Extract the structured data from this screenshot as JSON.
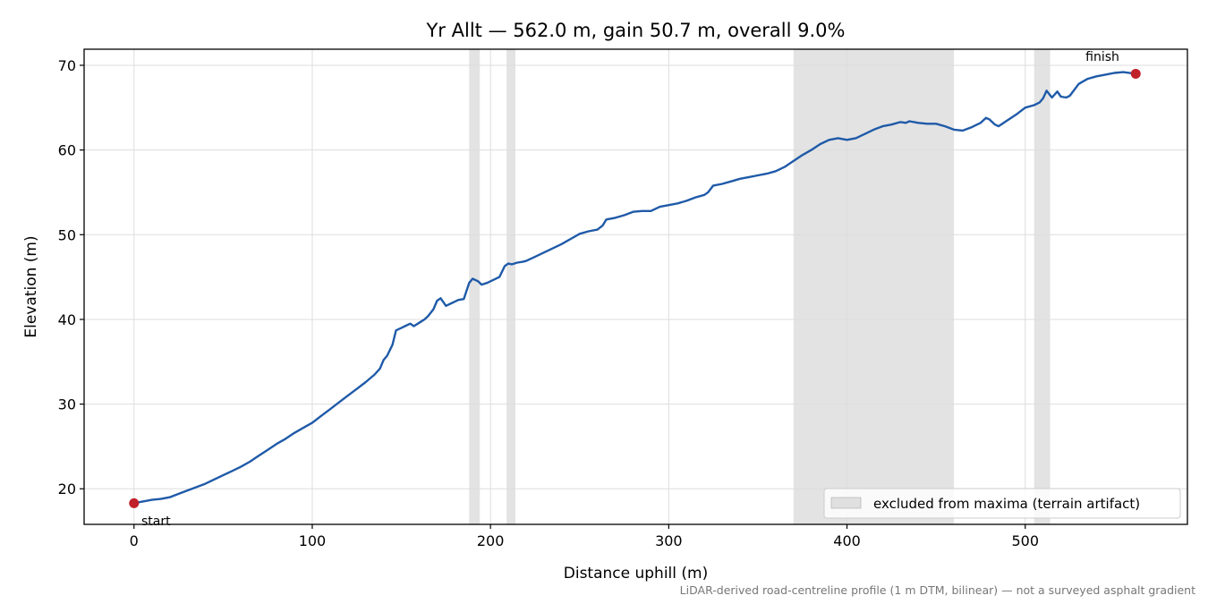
{
  "chart_data": {
    "type": "line",
    "title": "Yr Allt — 562.0 m, gain 50.7 m, overall 9.0%",
    "xlabel": "Distance uphill (m)",
    "ylabel": "Elevation (m)",
    "xlim": [
      -28,
      591
    ],
    "ylim": [
      15.8,
      71.9
    ],
    "xticks": [
      0,
      100,
      200,
      300,
      400,
      500
    ],
    "yticks": [
      20,
      30,
      40,
      50,
      60,
      70
    ],
    "grid": true,
    "line_color": "#1f5aa8",
    "marker_color": "#c0202a",
    "band_color": "#b8b8b8",
    "series": [
      {
        "x": [
          0,
          5,
          10,
          15,
          20,
          25,
          30,
          35,
          40,
          45,
          50,
          55,
          60,
          65,
          70,
          75,
          80,
          85,
          90,
          95,
          100,
          105,
          110,
          115,
          120,
          125,
          130,
          135,
          138,
          140,
          142,
          145,
          147,
          150,
          152,
          155,
          157,
          160,
          163,
          165,
          168,
          170,
          172,
          175,
          177,
          178,
          180,
          182,
          185,
          188,
          190,
          193,
          195,
          198,
          200,
          205,
          208,
          210,
          212,
          215,
          218,
          220,
          225,
          230,
          235,
          240,
          245,
          250,
          255,
          260,
          263,
          265,
          270,
          275,
          280,
          285,
          290,
          295,
          300,
          305,
          310,
          315,
          320,
          322,
          325,
          330,
          335,
          340,
          345,
          350,
          355,
          360,
          365,
          370,
          375,
          380,
          385,
          390,
          395,
          400,
          405,
          410,
          415,
          420,
          425,
          430,
          433,
          435,
          440,
          445,
          450,
          455,
          460,
          465,
          470,
          475,
          478,
          480,
          483,
          485,
          490,
          495,
          500,
          505,
          508,
          510,
          512,
          515,
          518,
          520,
          523,
          525,
          530,
          535,
          540,
          545,
          550,
          555,
          562
        ],
        "y": [
          18.3,
          18.5,
          18.7,
          18.8,
          19.0,
          19.4,
          19.8,
          20.2,
          20.6,
          21.1,
          21.6,
          22.1,
          22.6,
          23.2,
          23.9,
          24.6,
          25.3,
          25.9,
          26.6,
          27.2,
          27.8,
          28.6,
          29.4,
          30.2,
          31.0,
          31.8,
          32.6,
          33.5,
          34.2,
          35.2,
          35.7,
          37.0,
          38.7,
          39.0,
          39.2,
          39.5,
          39.2,
          39.6,
          40.0,
          40.4,
          41.2,
          42.2,
          42.5,
          41.6,
          41.8,
          41.9,
          42.1,
          42.3,
          42.4,
          44.3,
          44.8,
          44.5,
          44.1,
          44.3,
          44.5,
          45.0,
          46.3,
          46.6,
          46.5,
          46.7,
          46.8,
          46.9,
          47.4,
          47.9,
          48.4,
          48.9,
          49.5,
          50.1,
          50.4,
          50.6,
          51.1,
          51.8,
          52.0,
          52.3,
          52.7,
          52.8,
          52.8,
          53.3,
          53.5,
          53.7,
          54.0,
          54.4,
          54.7,
          55.0,
          55.8,
          56.0,
          56.3,
          56.6,
          56.8,
          57.0,
          57.2,
          57.5,
          58.0,
          58.7,
          59.4,
          60.0,
          60.7,
          61.2,
          61.4,
          61.2,
          61.4,
          61.9,
          62.4,
          62.8,
          63.0,
          63.3,
          63.2,
          63.4,
          63.2,
          63.1,
          63.1,
          62.8,
          62.4,
          62.3,
          62.7,
          63.2,
          63.8,
          63.6,
          63.0,
          62.8,
          63.5,
          64.2,
          65.0,
          65.3,
          65.6,
          66.1,
          67.0,
          66.2,
          66.9,
          66.3,
          66.2,
          66.4,
          67.8,
          68.4,
          68.7,
          68.9,
          69.1,
          69.2,
          69.0
        ]
      }
    ],
    "excluded_bands": [
      [
        188,
        194
      ],
      [
        209,
        214
      ],
      [
        370,
        460
      ],
      [
        505,
        514
      ]
    ],
    "legend": {
      "label": "excluded from maxima (terrain artifact)",
      "position": "lower-right"
    },
    "annotations": [
      {
        "text": "start",
        "x": 0,
        "y": 18.3
      },
      {
        "text": "finish",
        "x": 562,
        "y": 69.0
      }
    ],
    "footnote": "LiDAR-derived road-centreline profile (1 m DTM, bilinear) — not a surveyed asphalt gradient"
  }
}
